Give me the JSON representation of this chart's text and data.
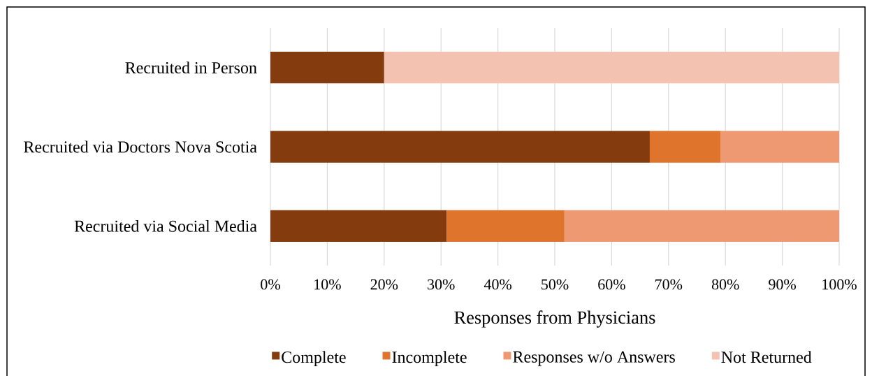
{
  "chart_data": {
    "type": "bar",
    "orientation": "horizontal",
    "stacked": true,
    "categories": [
      "Recruited in Person",
      "Recruited via Doctors Nova Scotia",
      "Recruited via Social Media"
    ],
    "series": [
      {
        "name": "Complete",
        "color": "#843b0d",
        "values": [
          20,
          66.7,
          31
        ]
      },
      {
        "name": "Incomplete",
        "color": "#df742d",
        "values": [
          null,
          12.5,
          20.7
        ]
      },
      {
        "name": "Responses w/o Answers",
        "color": "#ef9972",
        "values": [
          null,
          20.8,
          48.3
        ]
      },
      {
        "name": "Not Returned",
        "color": "#f4c2b1",
        "values": [
          80,
          null,
          null
        ]
      }
    ],
    "xlabel": "Responses from Physicians",
    "xlim": [
      0,
      100
    ],
    "xticks": [
      {
        "value": 0,
        "label": "0%"
      },
      {
        "value": 10,
        "label": "10%"
      },
      {
        "value": 20,
        "label": "20%"
      },
      {
        "value": 30,
        "label": "30%"
      },
      {
        "value": 40,
        "label": "40%"
      },
      {
        "value": 50,
        "label": "50%"
      },
      {
        "value": 60,
        "label": "60%"
      },
      {
        "value": 70,
        "label": "70%"
      },
      {
        "value": 80,
        "label": "80%"
      },
      {
        "value": 90,
        "label": "90%"
      },
      {
        "value": 100,
        "label": "100%"
      }
    ],
    "grid": "x",
    "legend": "bottom"
  }
}
